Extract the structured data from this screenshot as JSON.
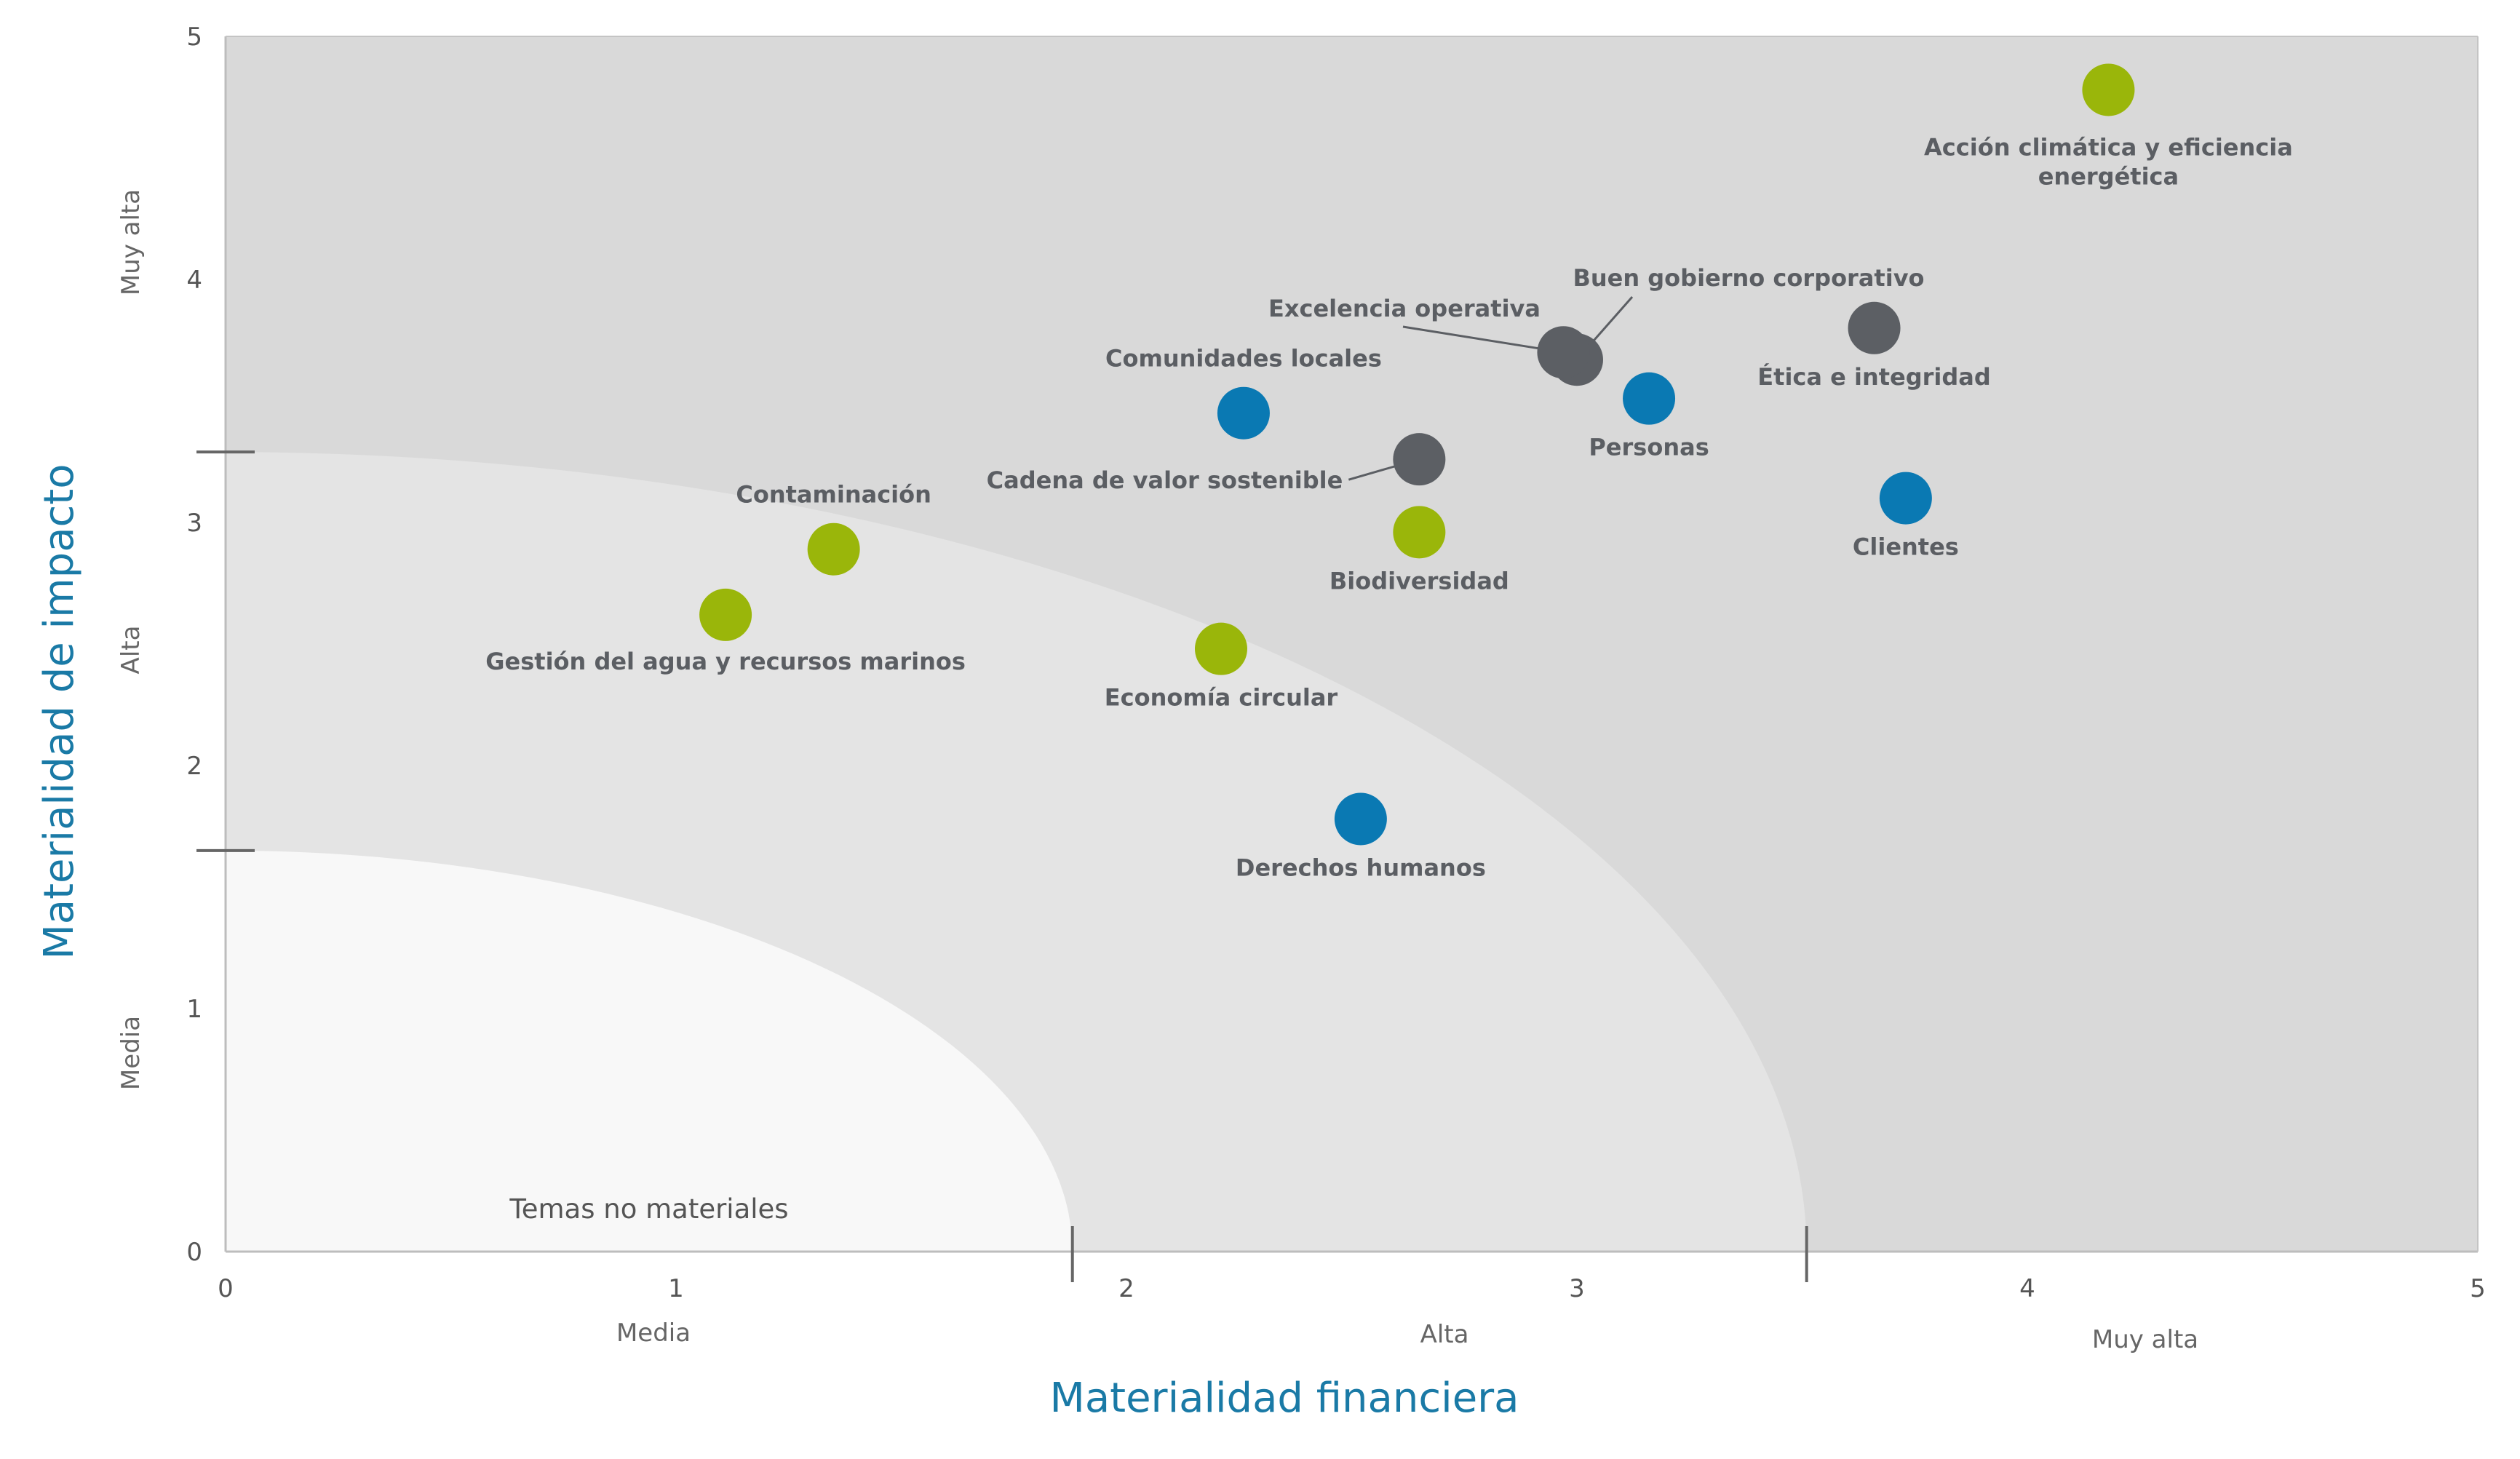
{
  "chart_data": {
    "type": "scatter",
    "xlabel": "Materialidad financiera",
    "ylabel": "Materialidad de impacto",
    "xlim": [
      0,
      5
    ],
    "ylim": [
      0,
      5
    ],
    "x_ticks": [
      "0",
      "1",
      "2",
      "3",
      "4",
      "5"
    ],
    "y_ticks": [
      "0",
      "1",
      "2",
      "3",
      "4",
      "5"
    ],
    "x_bands": [
      {
        "label": "Media",
        "from": 0,
        "to": 1.88
      },
      {
        "label": "Alta",
        "from": 1.88,
        "to": 3.51
      },
      {
        "label": "Muy alta",
        "from": 3.51,
        "to": 5
      }
    ],
    "y_bands": [
      {
        "label": "Media",
        "from": 0,
        "to": 1.65
      },
      {
        "label": "Alta",
        "from": 1.65,
        "to": 3.29
      },
      {
        "label": "Muy alta",
        "from": 3.29,
        "to": 5
      }
    ],
    "zone_label": "Temas no materiales",
    "colors": {
      "environmental": "#9ab60a",
      "social": "#0a79b3",
      "governance": "#5c5f64",
      "zone_outer": "#d9d9d9",
      "zone_middle": "#e4e4e4",
      "zone_inner": "#f8f8f8",
      "axis_title": "#1a7aa6"
    },
    "points": [
      {
        "label": "Acción climática y eficiencia energética",
        "x": 4.18,
        "y": 4.78,
        "group": "environmental"
      },
      {
        "label": "Buen gobierno corporativo",
        "x": 3.0,
        "y": 3.67,
        "group": "governance"
      },
      {
        "label": "Excelencia operativa",
        "x": 2.97,
        "y": 3.7,
        "group": "governance"
      },
      {
        "label": "Ética e integridad",
        "x": 3.66,
        "y": 3.8,
        "group": "governance"
      },
      {
        "label": "Comunidades locales",
        "x": 2.26,
        "y": 3.45,
        "group": "social"
      },
      {
        "label": "Personas",
        "x": 3.16,
        "y": 3.51,
        "group": "social"
      },
      {
        "label": "Cadena de valor sostenible",
        "x": 2.65,
        "y": 3.26,
        "group": "governance"
      },
      {
        "label": "Clientes",
        "x": 3.73,
        "y": 3.1,
        "group": "social"
      },
      {
        "label": "Contaminación",
        "x": 1.35,
        "y": 2.89,
        "group": "environmental"
      },
      {
        "label": "Biodiversidad",
        "x": 2.65,
        "y": 2.96,
        "group": "environmental"
      },
      {
        "label": "Gestión del agua y recursos marinos",
        "x": 1.11,
        "y": 2.62,
        "group": "environmental"
      },
      {
        "label": "Economía circular",
        "x": 2.21,
        "y": 2.48,
        "group": "environmental"
      },
      {
        "label": "Derechos humanos",
        "x": 2.52,
        "y": 1.78,
        "group": "social"
      }
    ]
  }
}
